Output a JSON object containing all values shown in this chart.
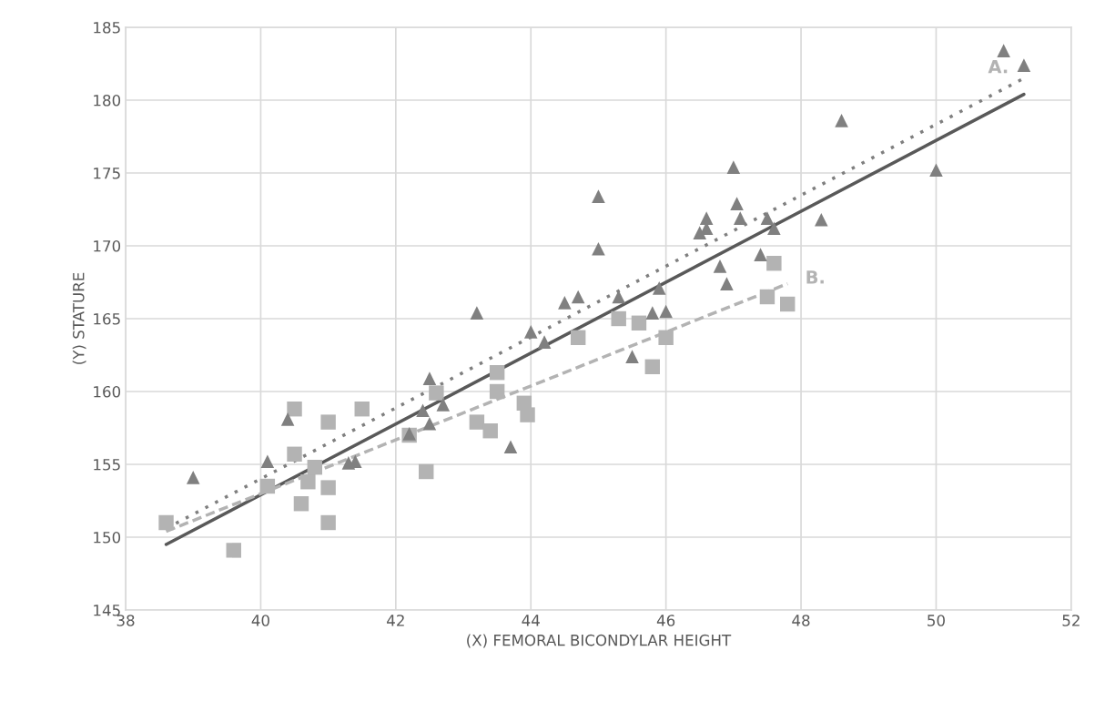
{
  "chart_data": {
    "type": "scatter",
    "xlabel": "(X) FEMORAL BICONDYLAR HEIGHT",
    "ylabel": "(Y) STATURE",
    "xlim": [
      38,
      52
    ],
    "xticks": [
      38,
      40,
      42,
      44,
      46,
      48,
      50,
      52
    ],
    "ylim": [
      145,
      185
    ],
    "yticks": [
      145,
      150,
      155,
      160,
      165,
      170,
      175,
      180,
      185
    ],
    "grid": true,
    "legend": false,
    "series": [
      {
        "marker": "triangle",
        "color": "#808080",
        "x": [
          39.0,
          40.1,
          40.4,
          41.3,
          41.4,
          42.2,
          42.4,
          42.5,
          42.5,
          42.7,
          43.2,
          43.7,
          44.0,
          44.2,
          44.5,
          44.7,
          45.0,
          45.0,
          45.3,
          45.5,
          45.8,
          45.9,
          46.0,
          46.5,
          46.6,
          46.6,
          46.8,
          46.9,
          47.0,
          47.05,
          47.1,
          47.4,
          47.5,
          47.6,
          48.3,
          48.6,
          50.0,
          51.0,
          51.3
        ],
        "values": [
          154.1,
          155.2,
          158.1,
          155.1,
          155.2,
          157.1,
          158.7,
          160.9,
          157.8,
          159.1,
          165.4,
          156.2,
          164.1,
          163.4,
          166.1,
          166.5,
          173.4,
          169.8,
          166.5,
          162.4,
          165.4,
          167.1,
          165.5,
          170.9,
          171.9,
          171.2,
          168.6,
          167.4,
          175.4,
          172.9,
          171.9,
          169.4,
          171.9,
          171.2,
          171.8,
          178.6,
          175.2,
          183.4,
          182.4
        ]
      },
      {
        "marker": "square",
        "color": "#b3b3b3",
        "x": [
          38.6,
          39.6,
          40.1,
          40.5,
          40.5,
          40.6,
          40.7,
          40.8,
          41.0,
          41.0,
          41.0,
          41.5,
          42.2,
          42.45,
          42.6,
          43.2,
          43.4,
          43.5,
          43.5,
          43.9,
          43.95,
          44.7,
          45.3,
          45.6,
          45.8,
          46.0,
          47.5,
          47.6,
          47.8
        ],
        "values": [
          151.0,
          149.1,
          153.5,
          158.8,
          155.7,
          152.3,
          153.8,
          154.8,
          157.9,
          153.4,
          151.0,
          158.8,
          157.0,
          154.5,
          159.9,
          157.9,
          157.3,
          161.3,
          160.0,
          159.2,
          158.4,
          163.7,
          165.0,
          164.7,
          161.7,
          163.7,
          166.5,
          168.8,
          166.0
        ]
      },
      {
        "type": "line",
        "line_style": "solid",
        "color": "#595959",
        "x": [
          38.6,
          51.3
        ],
        "values": [
          149.5,
          180.4
        ]
      },
      {
        "type": "line",
        "line_style": "dotted",
        "color": "#7f7f7f",
        "x": [
          38.6,
          51.3
        ],
        "values": [
          150.6,
          181.5
        ]
      },
      {
        "type": "line",
        "line_style": "dashed",
        "color": "#b3b3b3",
        "x": [
          38.6,
          47.8
        ],
        "values": [
          150.4,
          167.4
        ]
      }
    ],
    "annotations": [
      {
        "text": "A.",
        "x": 51.3,
        "y": 181.5
      },
      {
        "text": "B.",
        "x": 47.8,
        "y": 167.4
      }
    ]
  }
}
